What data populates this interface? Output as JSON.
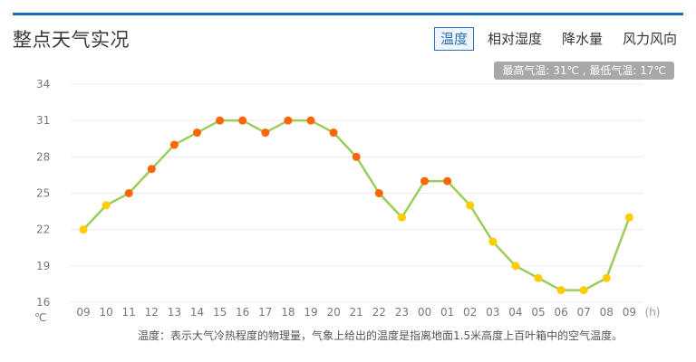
{
  "header": {
    "title": "整点天气实况",
    "tabs": [
      {
        "label": "温度",
        "active": true
      },
      {
        "label": "相对湿度",
        "active": false
      },
      {
        "label": "降水量",
        "active": false
      },
      {
        "label": "风力风向",
        "active": false
      }
    ]
  },
  "summary": "最高气温: 31℃ , 最低气温: 17℃",
  "chart_data": {
    "type": "line",
    "categories": [
      "09",
      "10",
      "11",
      "12",
      "13",
      "14",
      "15",
      "16",
      "17",
      "18",
      "19",
      "20",
      "21",
      "22",
      "23",
      "00",
      "01",
      "02",
      "03",
      "04",
      "05",
      "06",
      "07",
      "08",
      "09"
    ],
    "series": [
      {
        "values": [
          22,
          24,
          25,
          27,
          29,
          30,
          31,
          31,
          30,
          31,
          31,
          30,
          28,
          25,
          23,
          26,
          26,
          24,
          21,
          19,
          18,
          17,
          17,
          18,
          23
        ]
      }
    ],
    "xlabel": "(h)",
    "ylabel": "℃",
    "yticks": [
      16,
      19,
      22,
      25,
      28,
      31,
      34
    ],
    "ylim": [
      16,
      34
    ],
    "grid": true,
    "colors": {
      "line": "#9acd5a",
      "warm_marker": "#ff6600",
      "cool_marker": "#ffcc00",
      "grid": "#ececec",
      "axis_text": "#777777"
    }
  },
  "footnote": "温度：表示大气冷热程度的物理量，气象上给出的温度是指离地面1.5米高度上百叶箱中的空气温度。"
}
